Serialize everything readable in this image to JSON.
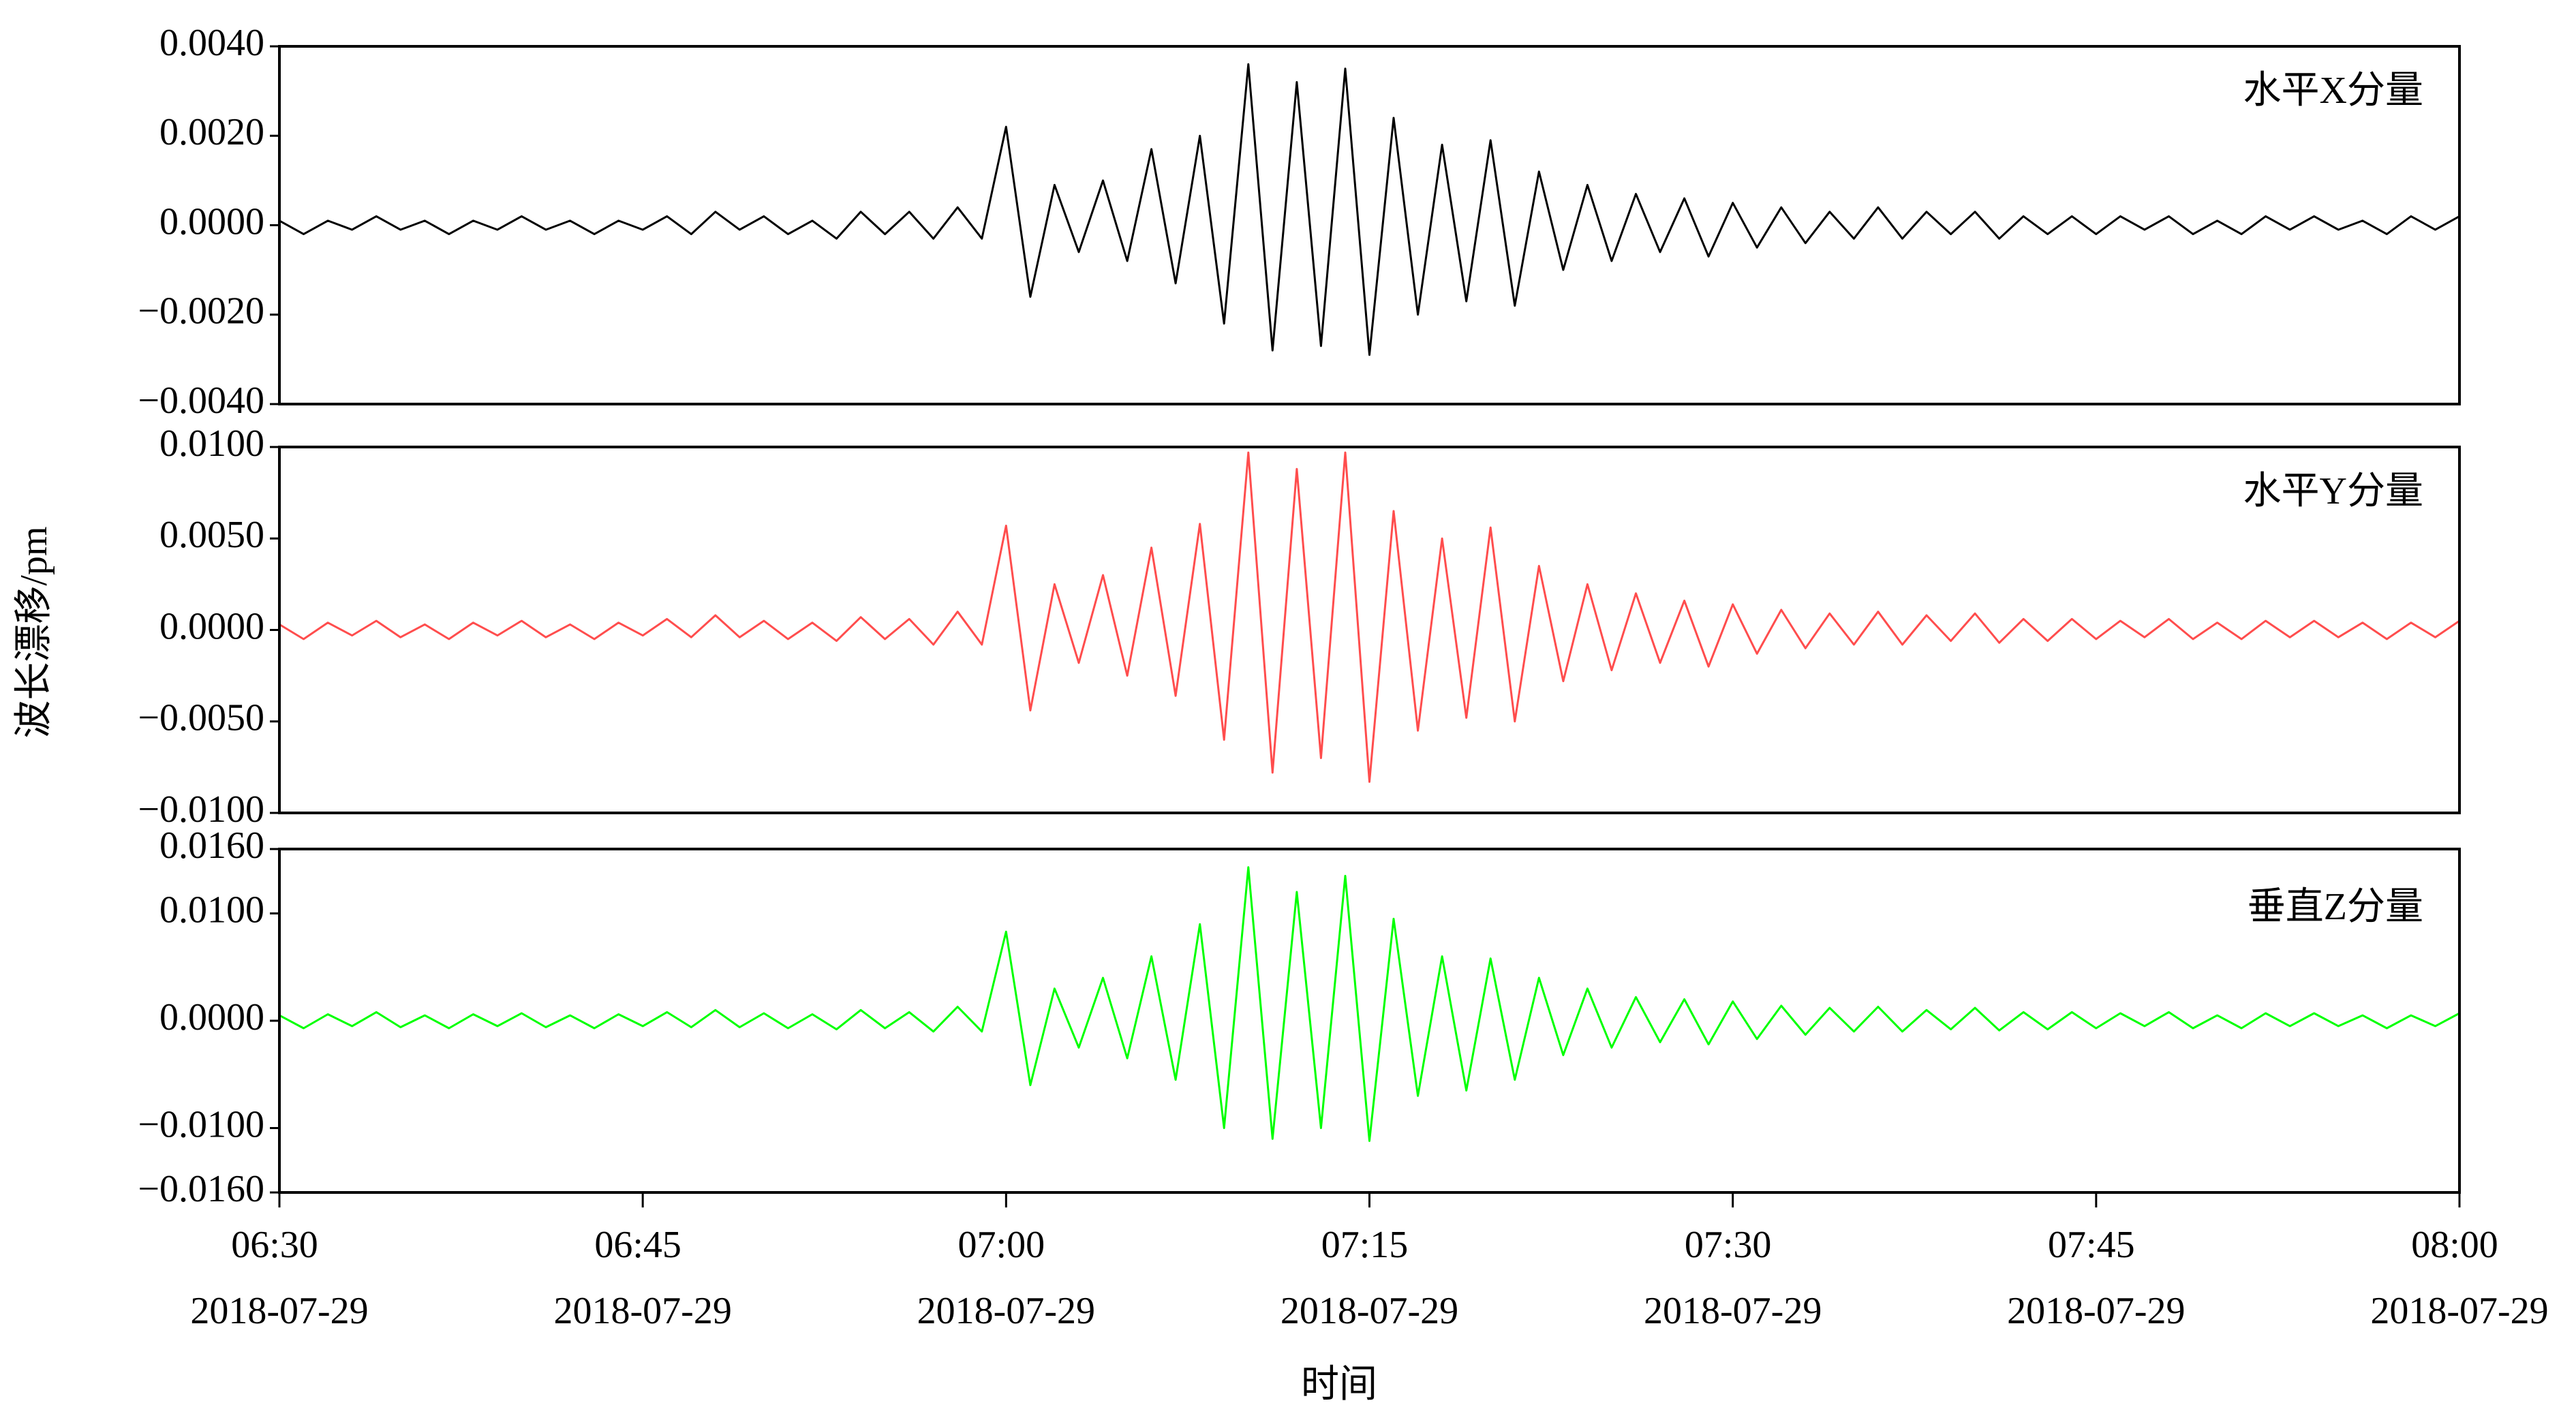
{
  "chart_data": {
    "type": "line",
    "xlabel": "时间",
    "ylabel": "波长漂移/pm",
    "grid": false,
    "xlim": [
      "2018-07-29 06:30",
      "2018-07-29 08:00"
    ],
    "xticks": [
      {
        "value": "2018-07-29 06:30",
        "label": "06:30 2018-07-29"
      },
      {
        "value": "2018-07-29 06:45",
        "label": "06:45 2018-07-29"
      },
      {
        "value": "2018-07-29 07:00",
        "label": "07:00 2018-07-29"
      },
      {
        "value": "2018-07-29 07:15",
        "label": "07:15 2018-07-29"
      },
      {
        "value": "2018-07-29 07:30",
        "label": "07:30 2018-07-29"
      },
      {
        "value": "2018-07-29 07:45",
        "label": "07:45 2018-07-29"
      },
      {
        "value": "2018-07-29 08:00",
        "label": "08:00 2018-07-29"
      }
    ],
    "x": [
      "2018-07-29 06:30",
      "2018-07-29 06:31",
      "2018-07-29 06:32",
      "2018-07-29 06:33",
      "2018-07-29 06:34",
      "2018-07-29 06:35",
      "2018-07-29 06:36",
      "2018-07-29 06:37",
      "2018-07-29 06:38",
      "2018-07-29 06:39",
      "2018-07-29 06:40",
      "2018-07-29 06:41",
      "2018-07-29 06:42",
      "2018-07-29 06:43",
      "2018-07-29 06:44",
      "2018-07-29 06:45",
      "2018-07-29 06:46",
      "2018-07-29 06:47",
      "2018-07-29 06:48",
      "2018-07-29 06:49",
      "2018-07-29 06:50",
      "2018-07-29 06:51",
      "2018-07-29 06:52",
      "2018-07-29 06:53",
      "2018-07-29 06:54",
      "2018-07-29 06:55",
      "2018-07-29 06:56",
      "2018-07-29 06:57",
      "2018-07-29 06:58",
      "2018-07-29 06:59",
      "2018-07-29 07:00",
      "2018-07-29 07:01",
      "2018-07-29 07:02",
      "2018-07-29 07:03",
      "2018-07-29 07:04",
      "2018-07-29 07:05",
      "2018-07-29 07:06",
      "2018-07-29 07:07",
      "2018-07-29 07:08",
      "2018-07-29 07:09",
      "2018-07-29 07:10",
      "2018-07-29 07:11",
      "2018-07-29 07:12",
      "2018-07-29 07:13",
      "2018-07-29 07:14",
      "2018-07-29 07:15",
      "2018-07-29 07:16",
      "2018-07-29 07:17",
      "2018-07-29 07:18",
      "2018-07-29 07:19",
      "2018-07-29 07:20",
      "2018-07-29 07:21",
      "2018-07-29 07:22",
      "2018-07-29 07:23",
      "2018-07-29 07:24",
      "2018-07-29 07:25",
      "2018-07-29 07:26",
      "2018-07-29 07:27",
      "2018-07-29 07:28",
      "2018-07-29 07:29",
      "2018-07-29 07:30",
      "2018-07-29 07:31",
      "2018-07-29 07:32",
      "2018-07-29 07:33",
      "2018-07-29 07:34",
      "2018-07-29 07:35",
      "2018-07-29 07:36",
      "2018-07-29 07:37",
      "2018-07-29 07:38",
      "2018-07-29 07:39",
      "2018-07-29 07:40",
      "2018-07-29 07:41",
      "2018-07-29 07:42",
      "2018-07-29 07:43",
      "2018-07-29 07:44",
      "2018-07-29 07:45",
      "2018-07-29 07:46",
      "2018-07-29 07:47",
      "2018-07-29 07:48",
      "2018-07-29 07:49",
      "2018-07-29 07:50",
      "2018-07-29 07:51",
      "2018-07-29 07:52",
      "2018-07-29 07:53",
      "2018-07-29 07:54",
      "2018-07-29 07:55",
      "2018-07-29 07:56",
      "2018-07-29 07:57",
      "2018-07-29 07:58",
      "2018-07-29 07:59",
      "2018-07-29 08:00"
    ],
    "series": [
      {
        "name": "水平X分量",
        "color": "#000000",
        "ylim": [
          -0.004,
          0.004
        ],
        "yticks": [
          {
            "value": -0.004,
            "label": "−0.0040"
          },
          {
            "value": -0.002,
            "label": "−0.0020"
          },
          {
            "value": 0,
            "label": "0.0000"
          },
          {
            "value": 0.002,
            "label": "0.0020"
          },
          {
            "value": 0.004,
            "label": "0.0040"
          }
        ],
        "values": [
          0.0001,
          -0.0002,
          0.0001,
          -0.0001,
          0.0002,
          -0.0001,
          0.0001,
          -0.0002,
          0.0001,
          -0.0001,
          0.0002,
          -0.0001,
          0.0001,
          -0.0002,
          0.0001,
          -0.0001,
          0.0002,
          -0.0002,
          0.0003,
          -0.0001,
          0.0002,
          -0.0002,
          0.0001,
          -0.0003,
          0.0003,
          -0.0002,
          0.0003,
          -0.0003,
          0.0004,
          -0.0003,
          0.0022,
          -0.0016,
          0.0009,
          -0.0006,
          0.001,
          -0.0008,
          0.0017,
          -0.0013,
          0.002,
          -0.0022,
          0.0036,
          -0.0028,
          0.0032,
          -0.0027,
          0.0035,
          -0.0029,
          0.0024,
          -0.002,
          0.0018,
          -0.0017,
          0.0019,
          -0.0018,
          0.0012,
          -0.001,
          0.0009,
          -0.0008,
          0.0007,
          -0.0006,
          0.0006,
          -0.0007,
          0.0005,
          -0.0005,
          0.0004,
          -0.0004,
          0.0003,
          -0.0003,
          0.0004,
          -0.0003,
          0.0003,
          -0.0002,
          0.0003,
          -0.0003,
          0.0002,
          -0.0002,
          0.0002,
          -0.0002,
          0.0002,
          -0.0001,
          0.0002,
          -0.0002,
          0.0001,
          -0.0002,
          0.0002,
          -0.0001,
          0.0002,
          -0.0001,
          0.0001,
          -0.0002,
          0.0002,
          -0.0001,
          0.0002
        ]
      },
      {
        "name": "水平Y分量",
        "color": "#ff4d4d",
        "ylim": [
          -0.01,
          0.01
        ],
        "yticks": [
          {
            "value": -0.01,
            "label": "−0.0100"
          },
          {
            "value": -0.005,
            "label": "−0.0050"
          },
          {
            "value": 0,
            "label": "0.0000"
          },
          {
            "value": 0.005,
            "label": "0.0050"
          },
          {
            "value": 0.01,
            "label": "0.0100"
          }
        ],
        "values": [
          0.0003,
          -0.0005,
          0.0004,
          -0.0003,
          0.0005,
          -0.0004,
          0.0003,
          -0.0005,
          0.0004,
          -0.0003,
          0.0005,
          -0.0004,
          0.0003,
          -0.0005,
          0.0004,
          -0.0003,
          0.0006,
          -0.0004,
          0.0008,
          -0.0004,
          0.0005,
          -0.0005,
          0.0004,
          -0.0006,
          0.0007,
          -0.0005,
          0.0006,
          -0.0008,
          0.001,
          -0.0008,
          0.0057,
          -0.0044,
          0.0025,
          -0.0018,
          0.003,
          -0.0025,
          0.0045,
          -0.0036,
          0.0058,
          -0.006,
          0.0097,
          -0.0078,
          0.0088,
          -0.007,
          0.0097,
          -0.0083,
          0.0065,
          -0.0055,
          0.005,
          -0.0048,
          0.0056,
          -0.005,
          0.0035,
          -0.0028,
          0.0025,
          -0.0022,
          0.002,
          -0.0018,
          0.0016,
          -0.002,
          0.0014,
          -0.0013,
          0.0011,
          -0.001,
          0.0009,
          -0.0008,
          0.001,
          -0.0008,
          0.0008,
          -0.0006,
          0.0009,
          -0.0007,
          0.0006,
          -0.0006,
          0.0006,
          -0.0005,
          0.0005,
          -0.0004,
          0.0006,
          -0.0005,
          0.0004,
          -0.0005,
          0.0005,
          -0.0004,
          0.0005,
          -0.0004,
          0.0004,
          -0.0005,
          0.0004,
          -0.0004,
          0.0005
        ]
      },
      {
        "name": "垂直Z分量",
        "color": "#00ff00",
        "ylim": [
          -0.016,
          0.016
        ],
        "yticks": [
          {
            "value": -0.016,
            "label": "−0.0160"
          },
          {
            "value": -0.01,
            "label": "−0.0100"
          },
          {
            "value": 0,
            "label": "0.0000"
          },
          {
            "value": 0.01,
            "label": "0.0100"
          },
          {
            "value": 0.016,
            "label": "0.0160"
          }
        ],
        "values": [
          0.0005,
          -0.0007,
          0.0006,
          -0.0005,
          0.0008,
          -0.0006,
          0.0005,
          -0.0007,
          0.0006,
          -0.0005,
          0.0007,
          -0.0006,
          0.0005,
          -0.0007,
          0.0006,
          -0.0005,
          0.0008,
          -0.0006,
          0.001,
          -0.0006,
          0.0007,
          -0.0007,
          0.0006,
          -0.0008,
          0.001,
          -0.0007,
          0.0008,
          -0.001,
          0.0013,
          -0.001,
          0.0083,
          -0.006,
          0.003,
          -0.0025,
          0.004,
          -0.0035,
          0.006,
          -0.0055,
          0.009,
          -0.01,
          0.0143,
          -0.011,
          0.012,
          -0.01,
          0.0135,
          -0.0112,
          0.0095,
          -0.007,
          0.006,
          -0.0065,
          0.0058,
          -0.0055,
          0.004,
          -0.0032,
          0.003,
          -0.0025,
          0.0022,
          -0.002,
          0.002,
          -0.0022,
          0.0018,
          -0.0017,
          0.0014,
          -0.0013,
          0.0012,
          -0.001,
          0.0013,
          -0.001,
          0.001,
          -0.0008,
          0.0012,
          -0.0009,
          0.0008,
          -0.0008,
          0.0008,
          -0.0007,
          0.0007,
          -0.0005,
          0.0008,
          -0.0007,
          0.0005,
          -0.0007,
          0.0007,
          -0.0005,
          0.0007,
          -0.0005,
          0.0005,
          -0.0007,
          0.0005,
          -0.0005,
          0.0007
        ]
      }
    ]
  }
}
